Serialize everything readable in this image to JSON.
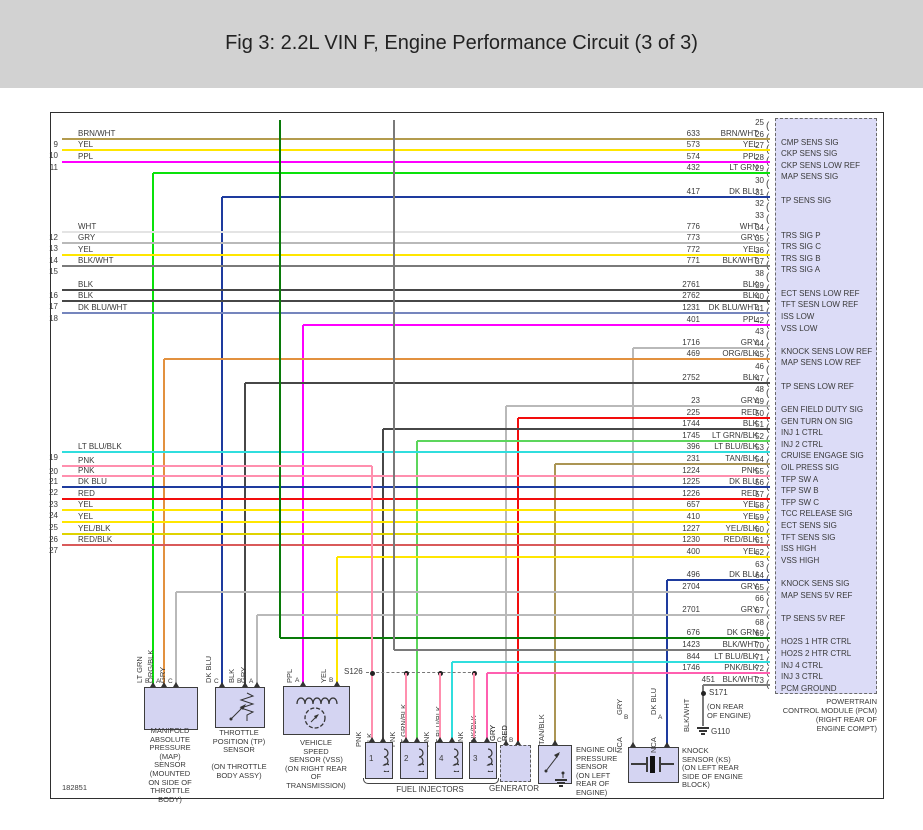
{
  "title": "Fig 3: 2.2L VIN F, Engine Performance Circuit (3 of 3)",
  "footer_code": "182851",
  "colors": {
    "BRN/WHT": "#b39b4e",
    "YEL": "#ffe600",
    "PPL": "#ff00ff",
    "WHT": "#e4e4e4",
    "GRY": "#b9b9b9",
    "BLK/WHT": "#7a7a7a",
    "BLK": "#474747",
    "DK BLU/WHT": "#7585bd",
    "LT BLU/BLK": "#30dede",
    "PNK": "#ff8fae",
    "DK BLU": "#1e3b9e",
    "RED": "#f20d0d",
    "YEL/BLK": "#dfd300",
    "RED/BLK": "#d95a5a",
    "LT GRN": "#0ae20a",
    "ORG/BLK": "#e2913f",
    "DK GRN": "#097a09",
    "TAN/BLK": "#ab9554",
    "LT GRN/BLK": "#5cd65c",
    "PNK/BLK": "#ff5fb0",
    "pcm_fill": "#dcdcf7",
    "comp_fill": "#d4d4f2",
    "titlebar": "#d2d2d2"
  },
  "pcm": {
    "label": [
      "POWERTRAIN",
      "CONTROL MODULE (PCM)",
      "(RIGHT REAR OF",
      "ENGINE COMPT)"
    ],
    "pins": [
      {
        "n": 25
      },
      {
        "n": 26,
        "num": "633",
        "color": "BRN/WHT",
        "signal": "CMP SENS SIG",
        "route": "full"
      },
      {
        "n": 27,
        "num": "573",
        "color": "YEL",
        "signal": "CKP SENS SIG",
        "route": "full"
      },
      {
        "n": 28,
        "num": "574",
        "color": "PPL",
        "signal": "CKP SENS LOW REF",
        "route": "full"
      },
      {
        "n": 29,
        "num": "432",
        "color": "LT GRN",
        "signal": "MAP SENS SIG",
        "route": "drop"
      },
      {
        "n": 30
      },
      {
        "n": 31,
        "num": "417",
        "color": "DK BLU",
        "signal": "TP SENS SIG",
        "route": "drop"
      },
      {
        "n": 32
      },
      {
        "n": 33
      },
      {
        "n": 34,
        "num": "776",
        "color": "WHT",
        "signal": "TRS SIG P",
        "route": "full"
      },
      {
        "n": 35,
        "num": "773",
        "color": "GRY",
        "signal": "TRS SIG C",
        "route": "full"
      },
      {
        "n": 36,
        "num": "772",
        "color": "YEL",
        "signal": "TRS SIG B",
        "route": "full"
      },
      {
        "n": 37,
        "num": "771",
        "color": "BLK/WHT",
        "signal": "TRS SIG A",
        "route": "full"
      },
      {
        "n": 38
      },
      {
        "n": 39,
        "num": "2761",
        "color": "BLK",
        "signal": "ECT SENS LOW REF",
        "route": "full"
      },
      {
        "n": 40,
        "num": "2762",
        "color": "BLK",
        "signal": "TFT SESN LOW REF",
        "route": "full"
      },
      {
        "n": 41,
        "num": "1231",
        "color": "DK BLU/WHT",
        "signal": "ISS LOW",
        "route": "full"
      },
      {
        "n": 42,
        "num": "401",
        "color": "PPL",
        "signal": "VSS LOW",
        "route": "drop"
      },
      {
        "n": 43
      },
      {
        "n": 44,
        "num": "1716",
        "color": "GRY",
        "signal": "KNOCK SENS LOW REF",
        "route": "drop"
      },
      {
        "n": 45,
        "num": "469",
        "color": "ORG/BLK",
        "signal": "MAP SENS LOW REF",
        "route": "drop"
      },
      {
        "n": 46
      },
      {
        "n": 47,
        "num": "2752",
        "color": "BLK",
        "signal": "TP SENS LOW REF",
        "route": "drop"
      },
      {
        "n": 48
      },
      {
        "n": 49,
        "num": "23",
        "color": "GRY",
        "signal": "GEN FIELD DUTY SIG",
        "route": "drop"
      },
      {
        "n": 50,
        "num": "225",
        "color": "RED",
        "signal": "GEN TURN ON SIG",
        "route": "drop"
      },
      {
        "n": 51,
        "num": "1744",
        "color": "BLK",
        "signal": "INJ 1 CTRL",
        "route": "drop"
      },
      {
        "n": 52,
        "num": "1745",
        "color": "LT GRN/BLK",
        "signal": "INJ 2 CTRL",
        "route": "drop"
      },
      {
        "n": 53,
        "num": "396",
        "color": "LT BLU/BLK",
        "signal": "CRUISE ENGAGE SIG",
        "route": "full"
      },
      {
        "n": 54,
        "num": "231",
        "color": "TAN/BLK",
        "signal": "OIL PRESS SIG",
        "route": "drop"
      },
      {
        "n": 55,
        "num": "1224",
        "color": "PNK",
        "signal": "TFP SW A",
        "route": "full"
      },
      {
        "n": 56,
        "num": "1225",
        "color": "DK BLU",
        "signal": "TFP SW B",
        "route": "full"
      },
      {
        "n": 57,
        "num": "1226",
        "color": "RED",
        "signal": "TFP SW C",
        "route": "full"
      },
      {
        "n": 58,
        "num": "657",
        "color": "YEL",
        "signal": "TCC RELEASE SIG",
        "route": "full"
      },
      {
        "n": 59,
        "num": "410",
        "color": "YEL",
        "signal": "ECT SENS SIG",
        "route": "full"
      },
      {
        "n": 60,
        "num": "1227",
        "color": "YEL/BLK",
        "signal": "TFT SENS SIG",
        "route": "full"
      },
      {
        "n": 61,
        "num": "1230",
        "color": "RED/BLK",
        "signal": "ISS HIGH",
        "route": "full"
      },
      {
        "n": 62,
        "num": "400",
        "color": "YEL",
        "signal": "VSS HIGH",
        "route": "drop"
      },
      {
        "n": 63
      },
      {
        "n": 64,
        "num": "496",
        "color": "DK BLU",
        "signal": "KNOCK SENS SIG",
        "route": "drop"
      },
      {
        "n": 65,
        "num": "2704",
        "color": "GRY",
        "signal": "MAP SENS 5V REF",
        "route": "drop"
      },
      {
        "n": 66
      },
      {
        "n": 67,
        "num": "2701",
        "color": "GRY",
        "signal": "TP SENS 5V REF",
        "route": "drop"
      },
      {
        "n": 68
      },
      {
        "n": 69,
        "num": "676",
        "color": "DK GRN",
        "signal": "HO2S 1 HTR CTRL",
        "route": "rise"
      },
      {
        "n": 70,
        "num": "1423",
        "color": "BLK/WHT",
        "signal": "HO2S 2 HTR CTRL",
        "route": "rise"
      },
      {
        "n": 71,
        "num": "844",
        "color": "LT BLU/BLK",
        "signal": "INJ 4 CTRL",
        "route": "drop"
      },
      {
        "n": 72,
        "num": "1746",
        "color": "PNK/BLK",
        "signal": "INJ 3 CTRL",
        "route": "drop"
      },
      {
        "n": 73,
        "num": "451",
        "color": "BLK/WHT",
        "signal": "PCM GROUND",
        "route": "ground"
      }
    ]
  },
  "left_wires": [
    {
      "n": 9,
      "pin": 26,
      "color": "BRN/WHT"
    },
    {
      "n": 10,
      "pin": 27,
      "color": "YEL"
    },
    {
      "n": 11,
      "pin": 28,
      "color": "PPL"
    },
    {
      "n": 12,
      "pin": 34,
      "color": "WHT"
    },
    {
      "n": 13,
      "pin": 35,
      "color": "GRY"
    },
    {
      "n": 14,
      "pin": 36,
      "color": "YEL"
    },
    {
      "n": 15,
      "pin": 37,
      "color": "BLK/WHT"
    },
    {
      "n": 16,
      "pin": 39,
      "color": "BLK"
    },
    {
      "n": 17,
      "pin": 40,
      "color": "BLK"
    },
    {
      "n": 18,
      "pin": 41,
      "color": "DK BLU/WHT"
    },
    {
      "n": 19,
      "pin": 53,
      "color": "LT BLU/BLK"
    },
    {
      "n": 20,
      "pin": null,
      "color": "PNK",
      "to": "s126"
    },
    {
      "n": 21,
      "pin": 55,
      "color": "PNK"
    },
    {
      "n": 22,
      "pin": 56,
      "color": "DK BLU"
    },
    {
      "n": 23,
      "pin": 57,
      "color": "RED"
    },
    {
      "n": 24,
      "pin": 58,
      "color": "YEL"
    },
    {
      "n": 25,
      "pin": 59,
      "color": "YEL"
    },
    {
      "n": 26,
      "pin": 60,
      "color": "YEL/BLK"
    },
    {
      "n": 27,
      "pin": 61,
      "color": "RED/BLK"
    }
  ],
  "splices": {
    "s126": {
      "label": "S126"
    },
    "s171": {
      "label": "S171",
      "wire": "BLK/WHT",
      "note": [
        "(ON REAR",
        "OF ENGINE)"
      ],
      "ground": "G110"
    }
  },
  "components": {
    "map": {
      "pins": [
        "B",
        "A",
        "C"
      ],
      "pin_colors": [
        "LT GRN",
        "ORG/BLK",
        "GRY"
      ],
      "label": [
        "MANIFOLD",
        "ABSOLUTE",
        "PRESSURE (MAP)",
        "SENSOR",
        "(MOUNTED",
        "ON SIDE OF",
        "THROTTLE",
        "BODY)"
      ]
    },
    "tp": {
      "pins": [
        "C",
        "B",
        "A"
      ],
      "pin_colors": [
        "DK BLU",
        "BLK",
        "GRY"
      ],
      "label": [
        "THROTTLE",
        "POSITION (TP)",
        "SENSOR",
        "",
        "(ON THROTTLE",
        "BODY ASSY)"
      ]
    },
    "vss": {
      "pins": [
        "A",
        "B"
      ],
      "pin_colors": [
        "PPL",
        "YEL"
      ],
      "label": [
        "VEHICLE",
        "SPEED",
        "SENSOR (VSS)",
        "(ON RIGHT REAR",
        "OF TRANSMISSION)"
      ]
    },
    "injectors": {
      "label": "FUEL INJECTORS",
      "items": [
        {
          "n": "1",
          "colors": [
            "PNK",
            "BLK"
          ]
        },
        {
          "n": "2",
          "colors": [
            "PNK",
            "LT GRN/BLK"
          ]
        },
        {
          "n": "4",
          "colors": [
            "PNK",
            "LT BLU/BLK"
          ]
        },
        {
          "n": "3",
          "colors": [
            "PNK",
            "PNK/BLK"
          ]
        }
      ]
    },
    "generator": {
      "pins": [
        "C",
        "B"
      ],
      "pin_colors": [
        "GRY",
        "RED"
      ],
      "label": "GENERATOR"
    },
    "oil": {
      "pin_colors": [
        "TAN/BLK"
      ],
      "label": [
        "ENGINE OIL",
        "PRESSURE",
        "SENSOR",
        "(ON LEFT",
        "REAR OF",
        "ENGINE)"
      ]
    },
    "knock": {
      "pins": [
        "B",
        "A"
      ],
      "pin_colors": [
        "GRY",
        "DK BLU"
      ],
      "nca": "NCA",
      "label": [
        "KNOCK",
        "SENSOR (KS)",
        "(ON LEFT REAR",
        "SIDE OF ENGINE",
        "BLOCK)"
      ]
    }
  }
}
